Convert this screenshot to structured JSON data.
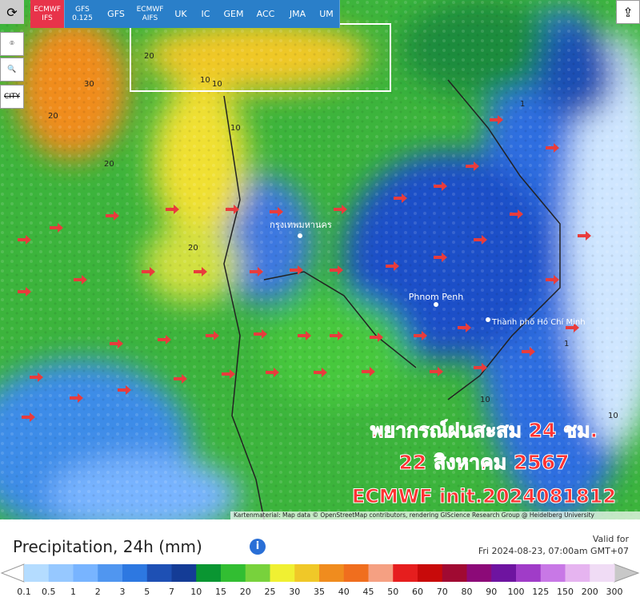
{
  "toolbar": {
    "models": [
      "ECMWF IFS",
      "GFS 0.125",
      "GFS",
      "ECMWF AIFS",
      "UK",
      "IC",
      "GEM",
      "ACC",
      "JMA",
      "UM"
    ],
    "city": "CITY"
  },
  "map": {
    "places": [
      "กรุงเทพมหานคร",
      "Phnom Penh",
      "Thành phố Hồ Chí Minh"
    ],
    "contour_labels": [
      "20",
      "30",
      "10",
      "20",
      "20",
      "10",
      "20",
      "10",
      "1",
      "10",
      "1",
      "10"
    ],
    "overlay": [
      "พยากรณ์ฝนสะสม 24 ชม.",
      "22 สิงหาคม 2567",
      "ECMWF init.2024081812"
    ],
    "attribution": "Kartenmaterial: Map data © OpenStreetMap contributors, rendering GIScience Research Group @ Heidelberg University"
  },
  "footer": {
    "title": "Precipitation, 24h (mm)",
    "valid_label": "Valid for",
    "valid_time": "Fri 2024-08-23, 07:00am GMT+07"
  },
  "legend": {
    "labels": [
      0.1,
      0.5,
      1,
      2,
      3,
      5,
      7,
      10,
      15,
      20,
      25,
      30,
      35,
      40,
      45,
      50,
      60,
      70,
      80,
      90,
      100,
      125,
      150,
      200,
      300
    ],
    "colors": [
      "#b4dcff",
      "#96c8ff",
      "#78b4ff",
      "#5096f0",
      "#2d78e1",
      "#1e50b4",
      "#143c96",
      "#0a9632",
      "#32be32",
      "#78d23c",
      "#f0f032",
      "#f0c828",
      "#f08c1e",
      "#f06e1e",
      "#f5a082",
      "#e61e1e",
      "#c80a0a",
      "#a00a32",
      "#8c0a78",
      "#6e14a0",
      "#a03cc8",
      "#c878e6",
      "#e6b4f0",
      "#f0dcf5"
    ]
  }
}
